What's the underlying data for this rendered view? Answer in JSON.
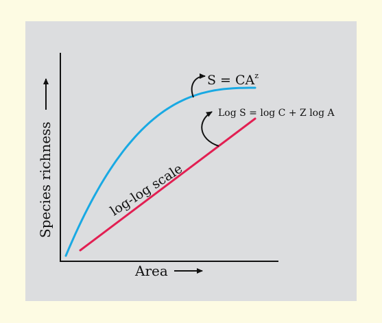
{
  "chart_data": {
    "type": "line",
    "title": "",
    "xlabel": "Area",
    "ylabel": "Species richness",
    "grid": false,
    "series": [
      {
        "curve": "power",
        "color": "#19a9e3",
        "annotation": "S = CA",
        "annotation_superscript": "z"
      },
      {
        "curve": "linear",
        "color": "#e21f52",
        "annotation": "Log S = log C + Z log A",
        "inline_label": "log-log scale"
      }
    ],
    "colors": {
      "page_background": "#fdfbe3",
      "panel_background": "#dcdddf",
      "axis": "#111111",
      "annotation_arrow": "#111111"
    },
    "icons": {
      "axis_arrow": "arrow-right-icon",
      "curved_pointer": "curved-arrow-icon"
    }
  }
}
